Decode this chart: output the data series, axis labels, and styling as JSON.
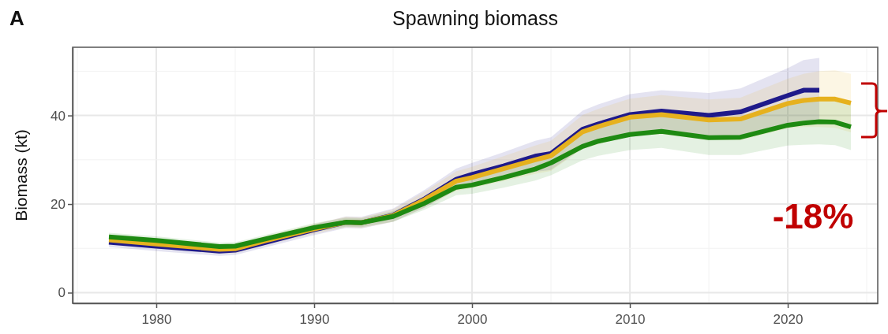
{
  "chart_data": {
    "type": "line",
    "title": "Spawning biomass",
    "ylabel": "Biomass (kt)",
    "x": [
      1977,
      1980,
      1984,
      1985,
      1987,
      1990,
      1992,
      1993,
      1995,
      1997,
      1999,
      2000,
      2002,
      2004,
      2005,
      2007,
      2008,
      2010,
      2012,
      2015,
      2017,
      2020,
      2021,
      2022,
      2023,
      2024
    ],
    "series": [
      {
        "color": "#1f1a8a",
        "x": [
          1977,
          1980,
          1984,
          1985,
          1987,
          1990,
          1992,
          1993,
          1995,
          1997,
          1999,
          2000,
          2002,
          2004,
          2005,
          2007,
          2008,
          2010,
          2012,
          2015,
          2017,
          2020,
          2021,
          2022
        ],
        "values": [
          11.4,
          10.5,
          9.4,
          9.6,
          11.4,
          14.2,
          15.9,
          15.8,
          17.5,
          21.2,
          25.6,
          26.7,
          28.6,
          30.8,
          31.4,
          36.9,
          38.1,
          40.2,
          41.0,
          40.0,
          40.8,
          44.5,
          45.7,
          45.7
        ],
        "lower": [
          10.3,
          9.4,
          8.3,
          8.5,
          10.3,
          13.0,
          14.6,
          14.5,
          16.0,
          19.2,
          23.2,
          24.1,
          25.5,
          27.3,
          27.7,
          32.7,
          33.7,
          35.6,
          36.3,
          34.9,
          35.5,
          38.3,
          38.9,
          38.4
        ],
        "upper": [
          12.5,
          11.6,
          10.5,
          10.7,
          12.5,
          15.4,
          17.2,
          17.1,
          19.0,
          23.2,
          28.0,
          29.3,
          31.7,
          34.3,
          35.1,
          41.1,
          42.5,
          44.8,
          45.7,
          45.1,
          46.1,
          50.7,
          52.5,
          53.0
        ]
      },
      {
        "color": "#e6b11e",
        "values": [
          11.9,
          11.0,
          9.8,
          9.9,
          11.8,
          14.4,
          15.9,
          15.8,
          17.4,
          21.0,
          25.2,
          26.0,
          28.0,
          30.0,
          30.9,
          36.3,
          37.5,
          39.6,
          40.2,
          39.0,
          39.2,
          42.7,
          43.4,
          43.7,
          43.7,
          42.8
        ],
        "lower": [
          10.9,
          10.0,
          8.8,
          8.9,
          10.8,
          13.3,
          14.7,
          14.6,
          16.0,
          19.2,
          23.0,
          23.6,
          25.2,
          26.8,
          27.5,
          32.5,
          33.5,
          35.4,
          35.8,
          34.4,
          34.4,
          37.1,
          37.4,
          37.4,
          37.2,
          36.2
        ],
        "upper": [
          12.9,
          12.0,
          10.8,
          10.9,
          12.8,
          15.5,
          17.1,
          17.0,
          18.8,
          22.8,
          27.4,
          28.4,
          30.8,
          33.2,
          34.3,
          40.1,
          41.5,
          43.8,
          44.6,
          43.6,
          44.0,
          48.3,
          49.4,
          50.0,
          50.2,
          49.4
        ]
      },
      {
        "color": "#1e8a12",
        "values": [
          12.6,
          11.8,
          10.4,
          10.5,
          12.2,
          14.7,
          15.9,
          15.8,
          17.2,
          20.2,
          23.8,
          24.3,
          26.0,
          27.9,
          29.3,
          33.0,
          34.2,
          35.7,
          36.4,
          35.0,
          35.1,
          37.8,
          38.3,
          38.6,
          38.5,
          37.4
        ],
        "lower": [
          11.7,
          10.9,
          9.5,
          9.6,
          11.3,
          13.7,
          14.9,
          14.8,
          16.0,
          18.7,
          22.0,
          22.3,
          23.7,
          25.3,
          26.5,
          29.9,
          30.9,
          32.2,
          32.7,
          31.1,
          31.1,
          33.2,
          33.4,
          33.5,
          33.3,
          32.2
        ],
        "upper": [
          13.5,
          12.7,
          11.3,
          11.4,
          13.1,
          15.7,
          16.9,
          16.8,
          18.4,
          21.7,
          25.6,
          26.3,
          28.3,
          30.5,
          32.1,
          36.1,
          37.5,
          39.2,
          40.1,
          38.9,
          39.1,
          42.4,
          43.2,
          43.7,
          43.7,
          42.6
        ]
      }
    ],
    "xlim": [
      1974.7,
      2025.7
    ],
    "xticks": [
      1980,
      1990,
      2000,
      2010,
      2020
    ],
    "ylim": [
      -2.4,
      55.4
    ],
    "yticks": [
      0,
      20,
      40
    ],
    "grid": true,
    "marker": "none",
    "line_style": "solid",
    "annotations": [
      "A",
      "-18%"
    ]
  }
}
